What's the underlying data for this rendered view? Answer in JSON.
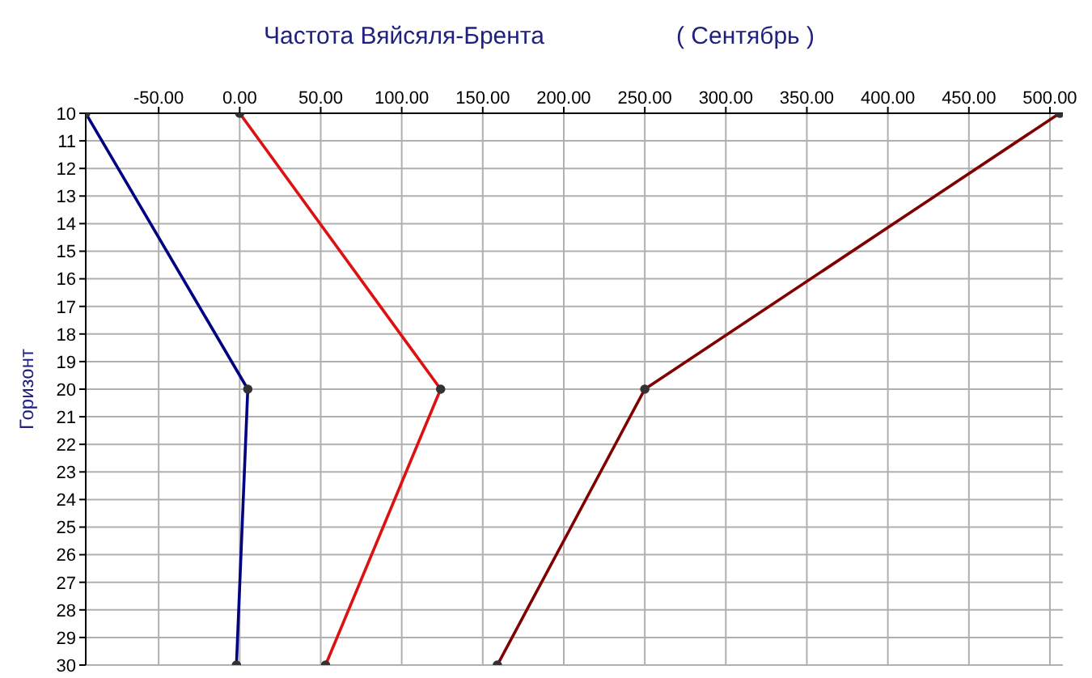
{
  "chart_data": {
    "type": "line",
    "title": "Частота Вяйсяля-Брента",
    "subtitle": "( Сентябрь )",
    "ylabel": "Горизонт",
    "xlim": [
      -95,
      508
    ],
    "xticks": [
      {
        "value": -50,
        "label": "-50.00"
      },
      {
        "value": 0,
        "label": "0.00"
      },
      {
        "value": 50,
        "label": "50.00"
      },
      {
        "value": 100,
        "label": "100.00"
      },
      {
        "value": 150,
        "label": "150.00"
      },
      {
        "value": 200,
        "label": "200.00"
      },
      {
        "value": 250,
        "label": "250.00"
      },
      {
        "value": 300,
        "label": "300.00"
      },
      {
        "value": 350,
        "label": "350.00"
      },
      {
        "value": 400,
        "label": "400.00"
      },
      {
        "value": 450,
        "label": "450.00"
      },
      {
        "value": 500,
        "label": "500.00"
      }
    ],
    "ylim": [
      30,
      10
    ],
    "yticks": [
      10,
      11,
      12,
      13,
      14,
      15,
      16,
      17,
      18,
      19,
      20,
      21,
      22,
      23,
      24,
      25,
      26,
      27,
      28,
      29,
      30
    ],
    "grid": true,
    "marker": "circle",
    "line_style": "solid",
    "series": [
      {
        "color": "#000080",
        "x": [
          -95,
          5,
          -2
        ],
        "values": [
          10,
          20,
          30
        ]
      },
      {
        "color": "#dd1111",
        "x": [
          0,
          124,
          53
        ],
        "values": [
          10,
          20,
          30
        ]
      },
      {
        "color": "#800000",
        "x": [
          506,
          250,
          159
        ],
        "values": [
          10,
          20,
          30
        ]
      }
    ]
  }
}
